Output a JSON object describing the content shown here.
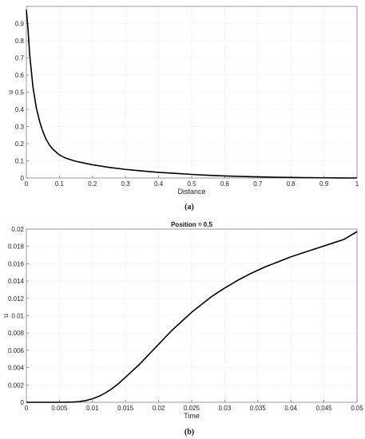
{
  "chart_data": [
    {
      "type": "line",
      "title": "",
      "caption": "(a)",
      "xlabel": "Distance",
      "ylabel": "u",
      "xlim": [
        0,
        1
      ],
      "ylim": [
        0,
        1
      ],
      "xticks": [
        "0",
        "0.1",
        "0.2",
        "0.3",
        "0.4",
        "0.5",
        "0.6",
        "0.7",
        "0.8",
        "0.9",
        "1"
      ],
      "yticks": [
        "0",
        "0.1",
        "0.2",
        "0.3",
        "0.4",
        "0.5",
        "0.6",
        "0.7",
        "0.8",
        "0.9"
      ],
      "grid": true,
      "series": [
        {
          "color": "#000000",
          "x": [
            0,
            0.005,
            0.01,
            0.02,
            0.03,
            0.04,
            0.05,
            0.06,
            0.07,
            0.08,
            0.1,
            0.12,
            0.15,
            0.2,
            0.25,
            0.3,
            0.35,
            0.4,
            0.45,
            0.5,
            0.55,
            0.6,
            0.65,
            0.7,
            0.75,
            0.8,
            0.85,
            0.9,
            0.95,
            1
          ],
          "y": [
            0.98,
            0.87,
            0.72,
            0.53,
            0.41,
            0.33,
            0.27,
            0.225,
            0.192,
            0.168,
            0.134,
            0.115,
            0.097,
            0.077,
            0.062,
            0.05,
            0.041,
            0.033,
            0.027,
            0.021,
            0.016,
            0.012,
            0.009,
            0.0065,
            0.0045,
            0.003,
            0.002,
            0.0012,
            0.0005,
            0
          ]
        }
      ]
    },
    {
      "type": "line",
      "title": "Position = 0.5",
      "caption": "(b)",
      "xlabel": "Time",
      "ylabel": "u",
      "xlim": [
        0,
        0.05
      ],
      "ylim": [
        0,
        0.02
      ],
      "xticks": [
        "0",
        "0.005",
        "0.01",
        "0.015",
        "0.02",
        "0.025",
        "0.03",
        "0.035",
        "0.04",
        "0.045",
        "0.05"
      ],
      "yticks": [
        "0",
        "0.002",
        "0.004",
        "0.006",
        "0.008",
        "0.01",
        "0.012",
        "0.014",
        "0.016",
        "0.018",
        "0.02"
      ],
      "grid": true,
      "series": [
        {
          "color": "#000000",
          "x": [
            0,
            0.005,
            0.007,
            0.008,
            0.009,
            0.01,
            0.011,
            0.012,
            0.013,
            0.014,
            0.015,
            0.016,
            0.017,
            0.018,
            0.019,
            0.02,
            0.021,
            0.022,
            0.023,
            0.024,
            0.025,
            0.026,
            0.027,
            0.028,
            0.029,
            0.03,
            0.032,
            0.034,
            0.036,
            0.038,
            0.04,
            0.042,
            0.044,
            0.046,
            0.048,
            0.05
          ],
          "y": [
            0,
            0,
            3e-05,
            8e-05,
            0.0002,
            0.0004,
            0.0007,
            0.0011,
            0.0016,
            0.0022,
            0.0029,
            0.0036,
            0.0043,
            0.0051,
            0.0059,
            0.0067,
            0.0075,
            0.0083,
            0.009,
            0.0097,
            0.0104,
            0.011,
            0.0116,
            0.0122,
            0.0127,
            0.0132,
            0.0141,
            0.0149,
            0.0156,
            0.0162,
            0.0168,
            0.0173,
            0.0178,
            0.0183,
            0.0188,
            0.0197
          ]
        }
      ]
    }
  ]
}
